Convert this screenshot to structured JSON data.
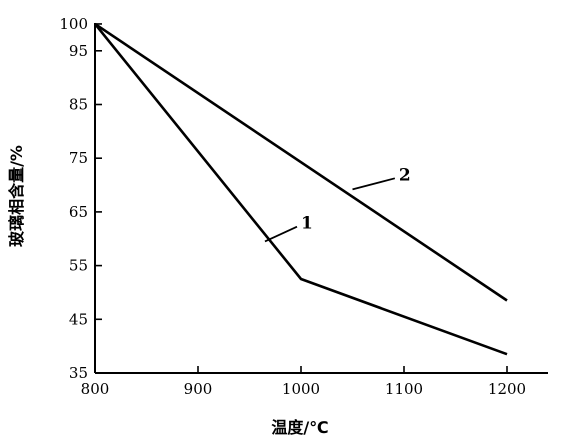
{
  "chart_data": {
    "type": "line",
    "xlabel": "温度/℃",
    "ylabel": "玻璃相含量/%",
    "xlim": [
      800,
      1250
    ],
    "ylim": [
      35,
      103
    ],
    "x_ticks": [
      800,
      900,
      1000,
      1100,
      1200
    ],
    "y_ticks": [
      35,
      45,
      55,
      65,
      75,
      85,
      95,
      100
    ],
    "grid": false,
    "series": [
      {
        "name": "1",
        "x": [
          800,
          1000,
          1200
        ],
        "y": [
          100,
          52.5,
          38.5
        ],
        "label_at": [
          1000,
          63
        ]
      },
      {
        "name": "2",
        "x": [
          800,
          1200
        ],
        "y": [
          100,
          48.5
        ],
        "label_at": [
          1095,
          72
        ]
      }
    ]
  }
}
